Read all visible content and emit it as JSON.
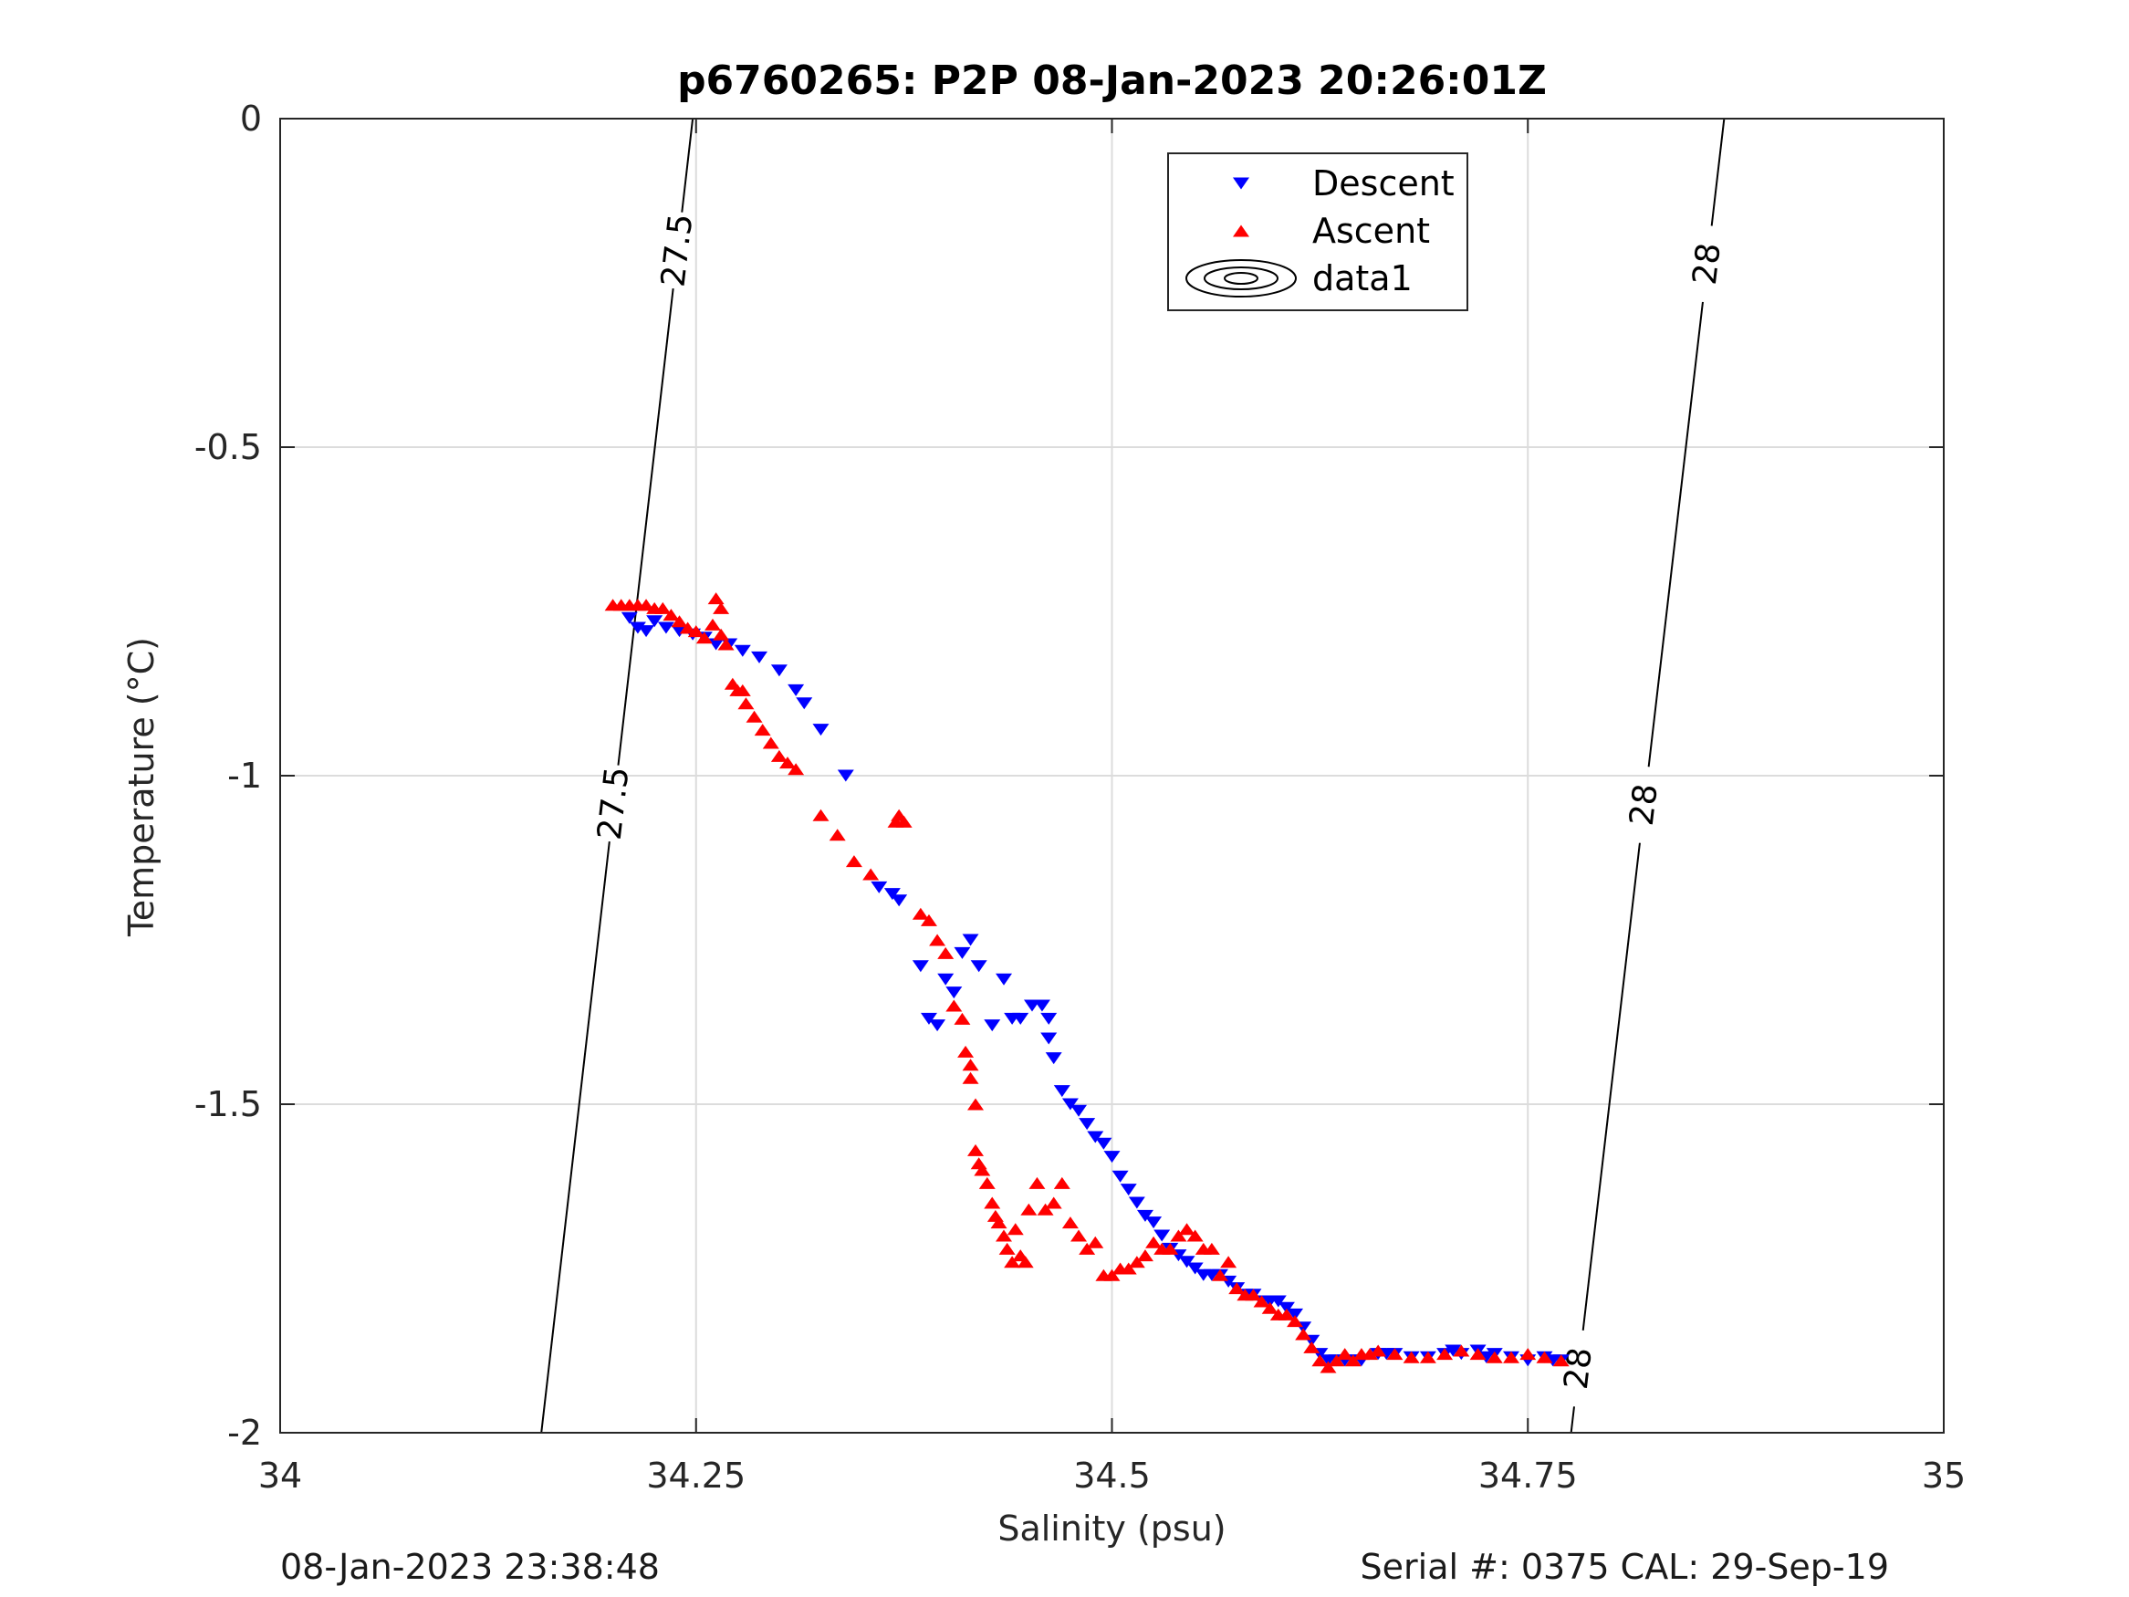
{
  "chart_data": {
    "type": "scatter",
    "title": "p6760265: P2P 08-Jan-2023 20:26:01Z",
    "xlabel": "Salinity (psu)",
    "ylabel": "Temperature (°C)",
    "xlim": [
      34,
      35
    ],
    "ylim": [
      -2,
      0
    ],
    "xticks": [
      34,
      34.25,
      34.5,
      34.75,
      35
    ],
    "xtick_labels": [
      "34",
      "34.25",
      "34.5",
      "34.75",
      "35"
    ],
    "yticks": [
      0,
      -0.5,
      -1,
      -1.5,
      -2
    ],
    "ytick_labels": [
      "0",
      "-0.5",
      "-1",
      "-1.5",
      "-2"
    ],
    "grid": true,
    "legend_position": "top-center",
    "isopycnals": [
      {
        "label": "27.5",
        "points": [
          [
            34.157,
            -2.0
          ],
          [
            34.248,
            0.0
          ]
        ],
        "label_points": [
          [
            34.193,
            -1.04
          ],
          [
            34.237,
            -0.2
          ]
        ]
      },
      {
        "label": "28",
        "points": [
          [
            34.776,
            -2.0
          ],
          [
            34.868,
            0.0
          ]
        ],
        "label_points": [
          [
            34.773,
            -1.9
          ],
          [
            34.805,
            -1.04
          ],
          [
            34.854,
            -0.22
          ]
        ]
      }
    ],
    "series": [
      {
        "name": "Descent",
        "marker": "triangle-down",
        "color": "#0000ff",
        "points": [
          [
            34.21,
            -0.76
          ],
          [
            34.215,
            -0.775
          ],
          [
            34.22,
            -0.78
          ],
          [
            34.225,
            -0.765
          ],
          [
            34.232,
            -0.775
          ],
          [
            34.24,
            -0.78
          ],
          [
            34.248,
            -0.785
          ],
          [
            34.255,
            -0.79
          ],
          [
            34.262,
            -0.8
          ],
          [
            34.27,
            -0.8
          ],
          [
            34.278,
            -0.81
          ],
          [
            34.288,
            -0.82
          ],
          [
            34.3,
            -0.84
          ],
          [
            34.31,
            -0.87
          ],
          [
            34.315,
            -0.89
          ],
          [
            34.325,
            -0.93
          ],
          [
            34.34,
            -1.0
          ],
          [
            34.36,
            -1.17
          ],
          [
            34.368,
            -1.18
          ],
          [
            34.372,
            -1.19
          ],
          [
            34.385,
            -1.29
          ],
          [
            34.39,
            -1.37
          ],
          [
            34.395,
            -1.38
          ],
          [
            34.4,
            -1.31
          ],
          [
            34.405,
            -1.33
          ],
          [
            34.41,
            -1.27
          ],
          [
            34.415,
            -1.25
          ],
          [
            34.42,
            -1.29
          ],
          [
            34.428,
            -1.38
          ],
          [
            34.435,
            -1.31
          ],
          [
            34.44,
            -1.37
          ],
          [
            34.445,
            -1.37
          ],
          [
            34.452,
            -1.35
          ],
          [
            34.458,
            -1.35
          ],
          [
            34.462,
            -1.37
          ],
          [
            34.462,
            -1.4
          ],
          [
            34.465,
            -1.43
          ],
          [
            34.47,
            -1.48
          ],
          [
            34.475,
            -1.5
          ],
          [
            34.48,
            -1.51
          ],
          [
            34.485,
            -1.53
          ],
          [
            34.49,
            -1.55
          ],
          [
            34.495,
            -1.56
          ],
          [
            34.5,
            -1.58
          ],
          [
            34.505,
            -1.61
          ],
          [
            34.51,
            -1.63
          ],
          [
            34.515,
            -1.65
          ],
          [
            34.52,
            -1.67
          ],
          [
            34.525,
            -1.68
          ],
          [
            34.53,
            -1.7
          ],
          [
            34.535,
            -1.72
          ],
          [
            34.54,
            -1.73
          ],
          [
            34.545,
            -1.74
          ],
          [
            34.55,
            -1.75
          ],
          [
            34.555,
            -1.76
          ],
          [
            34.56,
            -1.76
          ],
          [
            34.565,
            -1.76
          ],
          [
            34.57,
            -1.77
          ],
          [
            34.575,
            -1.78
          ],
          [
            34.58,
            -1.79
          ],
          [
            34.585,
            -1.79
          ],
          [
            34.59,
            -1.8
          ],
          [
            34.595,
            -1.8
          ],
          [
            34.6,
            -1.8
          ],
          [
            34.605,
            -1.81
          ],
          [
            34.61,
            -1.82
          ],
          [
            34.615,
            -1.84
          ],
          [
            34.62,
            -1.86
          ],
          [
            34.625,
            -1.88
          ],
          [
            34.63,
            -1.89
          ],
          [
            34.635,
            -1.89
          ],
          [
            34.64,
            -1.89
          ],
          [
            34.645,
            -1.89
          ],
          [
            34.65,
            -1.89
          ],
          [
            34.66,
            -1.88
          ],
          [
            34.665,
            -1.88
          ],
          [
            34.67,
            -1.88
          ],
          [
            34.68,
            -1.885
          ],
          [
            34.69,
            -1.885
          ],
          [
            34.7,
            -1.88
          ],
          [
            34.705,
            -1.875
          ],
          [
            34.71,
            -1.88
          ],
          [
            34.72,
            -1.875
          ],
          [
            34.725,
            -1.885
          ],
          [
            34.73,
            -1.88
          ],
          [
            34.74,
            -1.885
          ],
          [
            34.75,
            -1.89
          ],
          [
            34.76,
            -1.885
          ],
          [
            34.765,
            -1.89
          ],
          [
            34.77,
            -1.89
          ]
        ]
      },
      {
        "name": "Ascent",
        "marker": "triangle-up",
        "color": "#ff0000",
        "points": [
          [
            34.2,
            -0.74
          ],
          [
            34.205,
            -0.74
          ],
          [
            34.21,
            -0.74
          ],
          [
            34.215,
            -0.74
          ],
          [
            34.22,
            -0.74
          ],
          [
            34.225,
            -0.745
          ],
          [
            34.23,
            -0.745
          ],
          [
            34.235,
            -0.755
          ],
          [
            34.24,
            -0.765
          ],
          [
            34.245,
            -0.775
          ],
          [
            34.25,
            -0.78
          ],
          [
            34.255,
            -0.79
          ],
          [
            34.26,
            -0.77
          ],
          [
            34.262,
            -0.73
          ],
          [
            34.265,
            -0.745
          ],
          [
            34.265,
            -0.785
          ],
          [
            34.268,
            -0.8
          ],
          [
            34.272,
            -0.86
          ],
          [
            34.275,
            -0.87
          ],
          [
            34.278,
            -0.87
          ],
          [
            34.28,
            -0.89
          ],
          [
            34.285,
            -0.91
          ],
          [
            34.29,
            -0.93
          ],
          [
            34.295,
            -0.95
          ],
          [
            34.3,
            -0.97
          ],
          [
            34.305,
            -0.98
          ],
          [
            34.31,
            -0.99
          ],
          [
            34.325,
            -1.06
          ],
          [
            34.335,
            -1.09
          ],
          [
            34.345,
            -1.13
          ],
          [
            34.355,
            -1.15
          ],
          [
            34.37,
            -1.07
          ],
          [
            34.372,
            -1.06
          ],
          [
            34.375,
            -1.07
          ],
          [
            34.385,
            -1.21
          ],
          [
            34.39,
            -1.22
          ],
          [
            34.395,
            -1.25
          ],
          [
            34.4,
            -1.27
          ],
          [
            34.405,
            -1.35
          ],
          [
            34.41,
            -1.37
          ],
          [
            34.412,
            -1.42
          ],
          [
            34.415,
            -1.44
          ],
          [
            34.415,
            -1.46
          ],
          [
            34.418,
            -1.5
          ],
          [
            34.418,
            -1.57
          ],
          [
            34.42,
            -1.59
          ],
          [
            34.422,
            -1.6
          ],
          [
            34.425,
            -1.62
          ],
          [
            34.428,
            -1.65
          ],
          [
            34.43,
            -1.67
          ],
          [
            34.432,
            -1.68
          ],
          [
            34.435,
            -1.7
          ],
          [
            34.437,
            -1.72
          ],
          [
            34.44,
            -1.74
          ],
          [
            34.442,
            -1.69
          ],
          [
            34.445,
            -1.73
          ],
          [
            34.448,
            -1.74
          ],
          [
            34.45,
            -1.66
          ],
          [
            34.455,
            -1.62
          ],
          [
            34.46,
            -1.66
          ],
          [
            34.465,
            -1.65
          ],
          [
            34.47,
            -1.62
          ],
          [
            34.475,
            -1.68
          ],
          [
            34.48,
            -1.7
          ],
          [
            34.485,
            -1.72
          ],
          [
            34.49,
            -1.71
          ],
          [
            34.495,
            -1.76
          ],
          [
            34.5,
            -1.76
          ],
          [
            34.505,
            -1.75
          ],
          [
            34.51,
            -1.75
          ],
          [
            34.515,
            -1.74
          ],
          [
            34.52,
            -1.73
          ],
          [
            34.525,
            -1.71
          ],
          [
            34.53,
            -1.72
          ],
          [
            34.535,
            -1.72
          ],
          [
            34.54,
            -1.7
          ],
          [
            34.545,
            -1.69
          ],
          [
            34.55,
            -1.7
          ],
          [
            34.555,
            -1.72
          ],
          [
            34.56,
            -1.72
          ],
          [
            34.565,
            -1.76
          ],
          [
            34.57,
            -1.74
          ],
          [
            34.575,
            -1.78
          ],
          [
            34.58,
            -1.79
          ],
          [
            34.585,
            -1.79
          ],
          [
            34.59,
            -1.8
          ],
          [
            34.595,
            -1.81
          ],
          [
            34.6,
            -1.82
          ],
          [
            34.605,
            -1.82
          ],
          [
            34.61,
            -1.83
          ],
          [
            34.615,
            -1.85
          ],
          [
            34.62,
            -1.87
          ],
          [
            34.625,
            -1.89
          ],
          [
            34.63,
            -1.9
          ],
          [
            34.635,
            -1.89
          ],
          [
            34.64,
            -1.88
          ],
          [
            34.645,
            -1.89
          ],
          [
            34.65,
            -1.88
          ],
          [
            34.655,
            -1.88
          ],
          [
            34.66,
            -1.875
          ],
          [
            34.67,
            -1.88
          ],
          [
            34.68,
            -1.885
          ],
          [
            34.69,
            -1.885
          ],
          [
            34.7,
            -1.88
          ],
          [
            34.71,
            -1.875
          ],
          [
            34.72,
            -1.88
          ],
          [
            34.73,
            -1.885
          ],
          [
            34.74,
            -1.885
          ],
          [
            34.75,
            -1.88
          ],
          [
            34.76,
            -1.885
          ],
          [
            34.77,
            -1.89
          ]
        ]
      }
    ],
    "legend": [
      {
        "label": "Descent",
        "marker": "triangle-down",
        "color": "#0000ff"
      },
      {
        "label": "Ascent",
        "marker": "triangle-up",
        "color": "#ff0000"
      },
      {
        "label": "data1",
        "marker": "contour-ellipses",
        "color": "#000000"
      }
    ]
  },
  "footer": {
    "timestamp": "08-Jan-2023 23:38:48",
    "serial": "Serial #: 0375  CAL: 29-Sep-19"
  }
}
